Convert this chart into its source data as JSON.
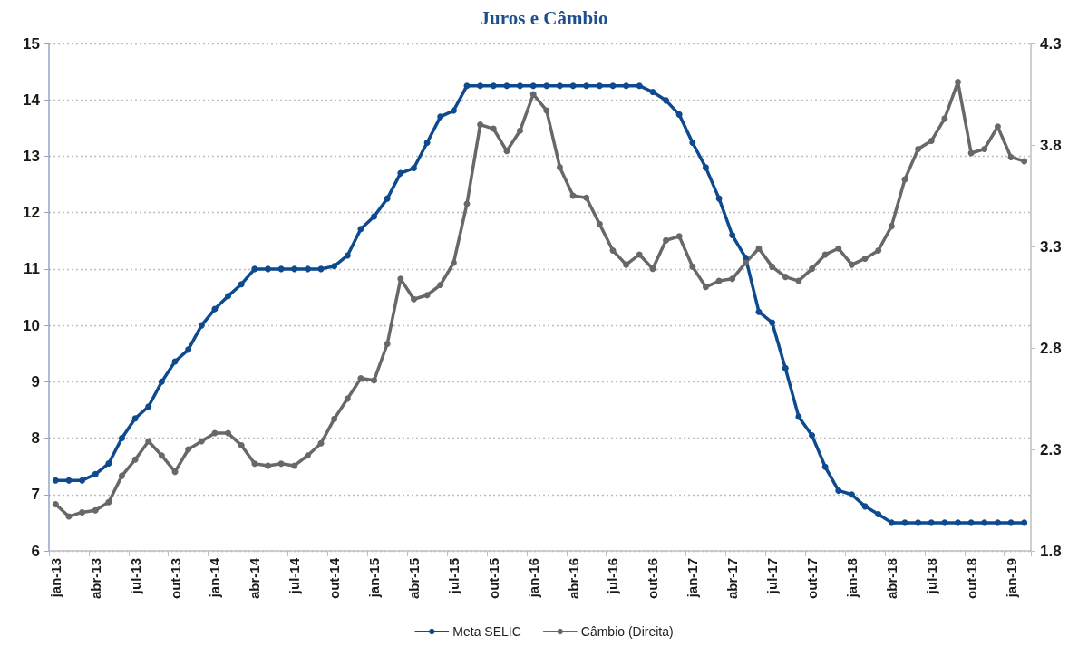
{
  "chart_data": {
    "type": "line",
    "title": "Juros e Câmbio",
    "categories": [
      "jan-13",
      null,
      null,
      "abr-13",
      null,
      null,
      "jul-13",
      null,
      null,
      "out-13",
      null,
      null,
      "jan-14",
      null,
      null,
      "abr-14",
      null,
      null,
      "jul-14",
      null,
      null,
      "out-14",
      null,
      null,
      "jan-15",
      null,
      null,
      "abr-15",
      null,
      null,
      "jul-15",
      null,
      null,
      "out-15",
      null,
      null,
      "jan-16",
      null,
      null,
      "abr-16",
      null,
      null,
      "jul-16",
      null,
      null,
      "out-16",
      null,
      null,
      "jan-17",
      null,
      null,
      "abr-17",
      null,
      null,
      "jul-17",
      null,
      null,
      "out-17",
      null,
      null,
      "jan-18",
      null,
      null,
      "abr-18",
      null,
      null,
      "jul-18",
      null,
      null,
      "out-18",
      null,
      null,
      "jan-19",
      null
    ],
    "series": [
      {
        "name": "Meta SELIC",
        "color": "#0e4a8e",
        "values": [
          7.25,
          7.25,
          7.25,
          7.36,
          7.55,
          8.0,
          8.35,
          8.56,
          9.0,
          9.36,
          9.57,
          10.0,
          10.29,
          10.52,
          10.73,
          11.0,
          11.0,
          11.0,
          11.0,
          11.0,
          11.0,
          11.05,
          11.24,
          11.71,
          11.93,
          12.25,
          12.7,
          12.79,
          13.24,
          13.7,
          13.81,
          14.25,
          14.25,
          14.25,
          14.25,
          14.25,
          14.25,
          14.25,
          14.25,
          14.25,
          14.25,
          14.25,
          14.25,
          14.25,
          14.25,
          14.14,
          13.99,
          13.74,
          13.24,
          12.8,
          12.25,
          11.6,
          11.2,
          10.24,
          10.05,
          9.24,
          8.38,
          8.05,
          7.49,
          7.07,
          7.0,
          6.79,
          6.65,
          6.5,
          6.5,
          6.5,
          6.5,
          6.5,
          6.5,
          6.5,
          6.5,
          6.5,
          6.5,
          6.5
        ]
      },
      {
        "name": "Câmbio (Direita)",
        "color": "#686868",
        "axis": "y2",
        "values": [
          2.03,
          1.97,
          1.99,
          2.0,
          2.04,
          2.17,
          2.25,
          2.34,
          2.27,
          2.19,
          2.3,
          2.34,
          2.38,
          2.38,
          2.32,
          2.23,
          2.22,
          2.23,
          2.22,
          2.27,
          2.33,
          2.45,
          2.55,
          2.65,
          2.64,
          2.82,
          3.14,
          3.04,
          3.06,
          3.11,
          3.22,
          3.51,
          3.9,
          3.88,
          3.77,
          3.87,
          4.05,
          3.97,
          3.69,
          3.55,
          3.54,
          3.41,
          3.28,
          3.21,
          3.26,
          3.19,
          3.33,
          3.35,
          3.2,
          3.1,
          3.13,
          3.14,
          3.22,
          3.29,
          3.2,
          3.15,
          3.13,
          3.19,
          3.26,
          3.29,
          3.21,
          3.24,
          3.28,
          3.4,
          3.63,
          3.78,
          3.82,
          3.93,
          4.11,
          3.76,
          3.78,
          3.89,
          3.74,
          3.72
        ]
      }
    ],
    "ylim": [
      6,
      15
    ],
    "yticks": [
      6,
      7,
      8,
      9,
      10,
      11,
      12,
      13,
      14,
      15
    ],
    "y2lim": [
      1.8,
      4.3
    ],
    "y2ticks": [
      1.8,
      2.3,
      2.8,
      3.3,
      3.8,
      4.3
    ],
    "grid": "y",
    "legend": "bottom",
    "marker": "circle",
    "line_style": "solid"
  }
}
